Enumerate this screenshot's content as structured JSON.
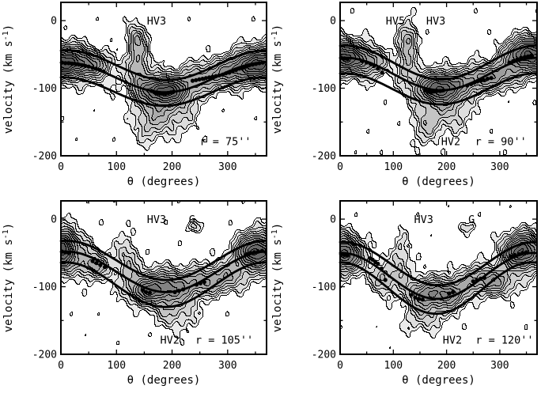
{
  "figure": {
    "background": "#ffffff",
    "line_color": "#000000",
    "fill_light": "#ebebeb",
    "fill_dark": "#5c5c5c",
    "grayscale": true
  },
  "axes": {
    "xlabel": "θ (degrees)",
    "ylabel": "velocity (km s⁻¹)",
    "ylabel_parts": {
      "pre": "velocity (km s",
      "sup": "-1",
      "post": ")"
    },
    "x_ticks": [
      0,
      100,
      200,
      300
    ],
    "x_minor_ticks": [
      50,
      150,
      250,
      350
    ],
    "y_ticks": [
      0,
      -100,
      -200
    ],
    "y_minor_ticks": [
      -50,
      -150
    ],
    "xlim": [
      0,
      370
    ],
    "ylim": [
      -200,
      27
    ],
    "ticks_inward": true,
    "grid": false
  },
  "chart_data": [
    {
      "type": "heatmap",
      "subtype": "grayscale contour map + model curves + scatter points",
      "radius_label": "r = 75''",
      "radius_arcsec": 75,
      "top_labels": [
        {
          "text": "HV3",
          "theta": 172,
          "v": -6
        }
      ],
      "bottom_labels": [
        {
          "text": "r = 75''",
          "theta": 296,
          "v": -184
        }
      ],
      "model_curves": [
        {
          "name": "upper",
          "v0": -66,
          "amp": 22,
          "phase": 10
        },
        {
          "name": "mid",
          "v0": -84,
          "amp": 22,
          "phase": 8
        },
        {
          "name": "lower",
          "v0": -105,
          "amp": 21,
          "phase": 5
        }
      ],
      "points": [
        [
          2,
          -62
        ],
        [
          8,
          -63
        ],
        [
          14,
          -63
        ],
        [
          20,
          -64
        ],
        [
          26,
          -64
        ],
        [
          32,
          -65
        ],
        [
          38,
          -66
        ],
        [
          44,
          -67
        ],
        [
          50,
          -68
        ],
        [
          57,
          -70
        ],
        [
          63,
          -71
        ],
        [
          70,
          -73
        ],
        [
          77,
          -75
        ],
        [
          163,
          -104
        ],
        [
          168,
          -106
        ],
        [
          173,
          -107
        ],
        [
          178,
          -108
        ],
        [
          183,
          -108
        ],
        [
          188,
          -108
        ],
        [
          193,
          -107
        ],
        [
          198,
          -106
        ],
        [
          203,
          -105
        ],
        [
          237,
          -89
        ],
        [
          243,
          -88
        ],
        [
          249,
          -87
        ],
        [
          255,
          -86
        ],
        [
          261,
          -85
        ],
        [
          267,
          -84
        ],
        [
          273,
          -83
        ],
        [
          279,
          -82
        ],
        [
          285,
          -81
        ],
        [
          291,
          -80
        ],
        [
          297,
          -78
        ],
        [
          303,
          -77
        ],
        [
          309,
          -75
        ],
        [
          315,
          -73
        ],
        [
          321,
          -71
        ],
        [
          327,
          -70
        ],
        [
          333,
          -68
        ],
        [
          339,
          -66
        ],
        [
          345,
          -65
        ],
        [
          351,
          -64
        ],
        [
          357,
          -63
        ],
        [
          363,
          -62
        ]
      ],
      "ridge": {
        "sv": 20,
        "base": 0.3,
        "mod": 0.22,
        "ph": 10
      },
      "blobs": [
        [
          5,
          -62,
          25,
          13,
          1.05
        ],
        [
          60,
          -65,
          25,
          12,
          0.5
        ],
        [
          360,
          -65,
          30,
          14,
          0.95
        ],
        [
          310,
          -75,
          28,
          13,
          0.5
        ],
        [
          186,
          -104,
          26,
          12,
          1.0
        ],
        [
          265,
          -85,
          30,
          14,
          0.45
        ],
        [
          140,
          -60,
          13,
          30,
          0.5
        ],
        [
          135,
          -25,
          10,
          12,
          0.3
        ],
        [
          160,
          -150,
          20,
          22,
          0.3
        ],
        [
          200,
          -140,
          32,
          20,
          0.28
        ]
      ],
      "seed": 1
    },
    {
      "type": "heatmap",
      "subtype": "grayscale contour map + model curves + scatter points",
      "radius_label": "r = 90''",
      "radius_arcsec": 90,
      "top_labels": [
        {
          "text": "HV5",
          "theta": 104,
          "v": -6
        },
        {
          "text": "HV3",
          "theta": 180,
          "v": -6
        }
      ],
      "bottom_labels": [
        {
          "text": "HV2",
          "theta": 208,
          "v": -184
        },
        {
          "text": "r = 90''",
          "theta": 302,
          "v": -184
        }
      ],
      "model_curves": [
        {
          "name": "upper",
          "v0": -62,
          "amp": 25,
          "phase": 10
        },
        {
          "name": "mid",
          "v0": -79,
          "amp": 24,
          "phase": 10
        },
        {
          "name": "lower",
          "v0": -101,
          "amp": 23,
          "phase": 8
        }
      ],
      "points": [
        [
          2,
          -55
        ],
        [
          8,
          -56
        ],
        [
          14,
          -57
        ],
        [
          42,
          -60
        ],
        [
          50,
          -62
        ],
        [
          57,
          -64
        ],
        [
          64,
          -67
        ],
        [
          71,
          -71
        ],
        [
          79,
          -77
        ],
        [
          160,
          -103
        ],
        [
          166,
          -105
        ],
        [
          171,
          -106
        ],
        [
          176,
          -105
        ],
        [
          182,
          -104
        ],
        [
          188,
          -104
        ],
        [
          194,
          -103
        ],
        [
          239,
          -96
        ],
        [
          246,
          -94
        ],
        [
          252,
          -92
        ],
        [
          258,
          -90
        ],
        [
          264,
          -89
        ],
        [
          270,
          -88
        ],
        [
          277,
          -86
        ],
        [
          284,
          -85
        ],
        [
          318,
          -62
        ],
        [
          325,
          -60
        ],
        [
          333,
          -57
        ],
        [
          340,
          -55
        ],
        [
          347,
          -54
        ],
        [
          353,
          -53
        ],
        [
          359,
          -52
        ]
      ],
      "ridge": {
        "sv": 20,
        "base": 0.28,
        "mod": 0.2,
        "ph": 10
      },
      "blobs": [
        [
          5,
          -55,
          22,
          14,
          1.0
        ],
        [
          55,
          -60,
          22,
          12,
          0.5
        ],
        [
          350,
          -50,
          26,
          15,
          1.05
        ],
        [
          300,
          -80,
          25,
          13,
          0.45
        ],
        [
          188,
          -100,
          26,
          13,
          0.95
        ],
        [
          262,
          -88,
          28,
          13,
          0.5
        ],
        [
          125,
          -45,
          12,
          28,
          0.45
        ],
        [
          135,
          -25,
          10,
          10,
          0.25
        ],
        [
          160,
          -155,
          18,
          20,
          0.3
        ],
        [
          205,
          -138,
          30,
          20,
          0.28
        ]
      ],
      "seed": 2
    },
    {
      "type": "heatmap",
      "subtype": "grayscale contour map + model curves + scatter points",
      "radius_label": "r = 105''",
      "radius_arcsec": 105,
      "top_labels": [
        {
          "text": "HV3",
          "theta": 172,
          "v": -6
        },
        {
          "text": "G",
          "theta": 236,
          "v": -6
        }
      ],
      "bottom_labels": [
        {
          "text": "HV2",
          "theta": 196,
          "v": -184
        },
        {
          "text": "r = 105''",
          "theta": 294,
          "v": -184
        }
      ],
      "model_curves": [
        {
          "name": "upper",
          "v0": -61,
          "amp": 29,
          "phase": 10
        },
        {
          "name": "mid",
          "v0": -78,
          "amp": 30,
          "phase": 10
        },
        {
          "name": "lower",
          "v0": -97,
          "amp": 33,
          "phase": 8
        }
      ],
      "points": [
        [
          2,
          -48
        ],
        [
          8,
          -49
        ],
        [
          14,
          -50
        ],
        [
          57,
          -62
        ],
        [
          64,
          -65
        ],
        [
          71,
          -68
        ],
        [
          79,
          -71
        ],
        [
          147,
          -105
        ],
        [
          153,
          -108
        ],
        [
          160,
          -109
        ],
        [
          205,
          -108
        ],
        [
          212,
          -106
        ],
        [
          220,
          -104
        ],
        [
          244,
          -97
        ],
        [
          251,
          -95
        ],
        [
          258,
          -93
        ],
        [
          334,
          -52
        ],
        [
          341,
          -50
        ],
        [
          348,
          -49
        ],
        [
          355,
          -48
        ],
        [
          362,
          -47
        ]
      ],
      "ridge": {
        "sv": 22,
        "base": 0.24,
        "mod": 0.16,
        "ph": 10
      },
      "blobs": [
        [
          4,
          -45,
          14,
          18,
          1.2
        ],
        [
          60,
          -70,
          20,
          12,
          0.4
        ],
        [
          352,
          -48,
          22,
          16,
          1.15
        ],
        [
          300,
          -85,
          25,
          13,
          0.4
        ],
        [
          185,
          -100,
          30,
          14,
          0.6
        ],
        [
          150,
          -108,
          20,
          12,
          0.5
        ],
        [
          260,
          -95,
          28,
          13,
          0.45
        ],
        [
          120,
          -60,
          14,
          25,
          0.32
        ],
        [
          240,
          -12,
          12,
          6,
          0.22
        ],
        [
          210,
          -140,
          25,
          18,
          0.25
        ]
      ],
      "seed": 3
    },
    {
      "type": "heatmap",
      "subtype": "grayscale contour map + model curves + scatter points",
      "radius_label": "r = 120''",
      "radius_arcsec": 120,
      "top_labels": [
        {
          "text": "HV3",
          "theta": 157,
          "v": -6
        },
        {
          "text": "G",
          "theta": 247,
          "v": -6
        }
      ],
      "bottom_labels": [
        {
          "text": "HV2",
          "theta": 211,
          "v": -184
        },
        {
          "text": "r = 120''",
          "theta": 309,
          "v": -184
        }
      ],
      "model_curves": [
        {
          "name": "upper",
          "v0": -66,
          "amp": 32,
          "phase": 5
        },
        {
          "name": "mid",
          "v0": -84,
          "amp": 34,
          "phase": 2
        },
        {
          "name": "lower",
          "v0": -102,
          "amp": 38,
          "phase": 0
        }
      ],
      "points": [
        [
          2,
          -52
        ],
        [
          8,
          -53
        ],
        [
          14,
          -54
        ],
        [
          56,
          -58
        ],
        [
          61,
          -60
        ],
        [
          66,
          -63
        ],
        [
          71,
          -66
        ],
        [
          78,
          -73
        ],
        [
          85,
          -90
        ],
        [
          134,
          -112
        ],
        [
          141,
          -116
        ],
        [
          148,
          -118
        ],
        [
          155,
          -119
        ],
        [
          205,
          -110
        ],
        [
          212,
          -108
        ],
        [
          250,
          -92
        ],
        [
          257,
          -90
        ],
        [
          264,
          -88
        ],
        [
          271,
          -87
        ],
        [
          320,
          -55
        ],
        [
          328,
          -53
        ],
        [
          336,
          -52
        ],
        [
          343,
          -50
        ],
        [
          350,
          -49
        ]
      ],
      "ridge": {
        "sv": 22,
        "base": 0.22,
        "mod": 0.15,
        "ph": 5
      },
      "blobs": [
        [
          8,
          -52,
          18,
          16,
          1.0
        ],
        [
          85,
          -90,
          15,
          14,
          0.4
        ],
        [
          340,
          -48,
          22,
          16,
          1.15
        ],
        [
          300,
          -95,
          24,
          13,
          0.4
        ],
        [
          165,
          -110,
          25,
          13,
          0.55
        ],
        [
          210,
          -110,
          20,
          12,
          0.45
        ],
        [
          265,
          -90,
          26,
          13,
          0.5
        ],
        [
          115,
          -60,
          12,
          25,
          0.3
        ],
        [
          240,
          -12,
          12,
          6,
          0.2
        ],
        [
          150,
          -145,
          20,
          18,
          0.25
        ]
      ],
      "seed": 4
    }
  ]
}
